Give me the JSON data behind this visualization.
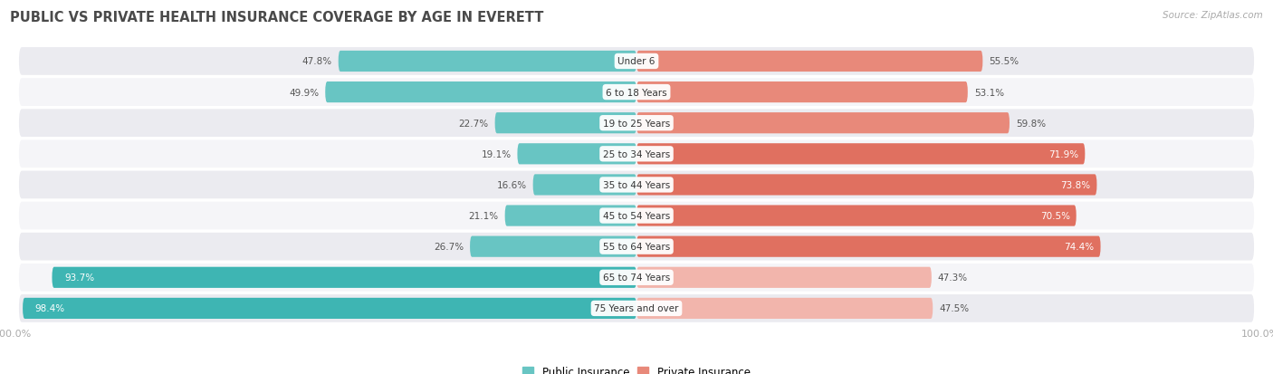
{
  "title": "PUBLIC VS PRIVATE HEALTH INSURANCE COVERAGE BY AGE IN EVERETT",
  "source": "Source: ZipAtlas.com",
  "categories": [
    "Under 6",
    "6 to 18 Years",
    "19 to 25 Years",
    "25 to 34 Years",
    "35 to 44 Years",
    "45 to 54 Years",
    "55 to 64 Years",
    "65 to 74 Years",
    "75 Years and over"
  ],
  "public_values": [
    47.8,
    49.9,
    22.7,
    19.1,
    16.6,
    21.1,
    26.7,
    93.7,
    98.4
  ],
  "private_values": [
    55.5,
    53.1,
    59.8,
    71.9,
    73.8,
    70.5,
    74.4,
    47.3,
    47.5
  ],
  "public_color_normal": "#68c5c3",
  "public_color_strong": "#3eb5b3",
  "private_color_normal": "#e8897a",
  "private_color_strong": "#e07060",
  "private_color_light": "#f2b5ac",
  "bg_row_even": "#ebebf0",
  "bg_row_odd": "#f5f5f8",
  "title_color": "#4a4a4a",
  "label_outside_color": "#555555",
  "label_inside_color": "#ffffff",
  "source_color": "#aaaaaa",
  "axis_tick_color": "#aaaaaa",
  "max_value": 100.0,
  "legend_public": "Public Insurance",
  "legend_private": "Private Insurance"
}
